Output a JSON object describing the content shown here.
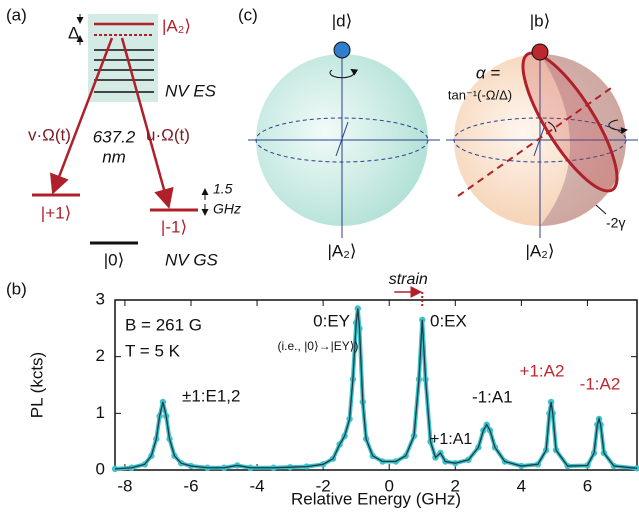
{
  "chart_data": {
    "type": "line",
    "panel_label": "(b)",
    "x_label": "Relative Energy (GHz)",
    "y_label": "PL (kcts)",
    "x": [
      -8.3,
      -7.8,
      -7.4,
      -7.2,
      -7.05,
      -6.95,
      -6.85,
      -6.75,
      -6.65,
      -6.5,
      -6.3,
      -6,
      -5.5,
      -5,
      -4.6,
      -4.2,
      -3.5,
      -3,
      -2.5,
      -2,
      -1.7,
      -1.5,
      -1.35,
      -1.2,
      -1.1,
      -1.0,
      -0.95,
      -0.9,
      -0.8,
      -0.7,
      -0.5,
      -0.2,
      0.2,
      0.5,
      0.75,
      0.9,
      1.0,
      1.1,
      1.25,
      1.4,
      1.55,
      1.7,
      2.0,
      2.4,
      2.7,
      2.85,
      2.95,
      3.05,
      3.2,
      3.5,
      4.0,
      4.5,
      4.75,
      4.85,
      4.9,
      4.95,
      5.05,
      5.4,
      6.0,
      6.2,
      6.3,
      6.35,
      6.4,
      6.5,
      6.8,
      7.5
    ],
    "series": [
      {
        "color": "#3cc3c9",
        "values": [
          0.02,
          0.04,
          0.1,
          0.25,
          0.55,
          0.95,
          1.2,
          0.95,
          0.55,
          0.25,
          0.12,
          0.07,
          0.04,
          0.04,
          0.08,
          0.04,
          0.04,
          0.05,
          0.06,
          0.1,
          0.2,
          0.45,
          0.6,
          0.9,
          1.6,
          2.6,
          2.85,
          2.5,
          1.2,
          0.55,
          0.25,
          0.15,
          0.15,
          0.25,
          0.6,
          1.6,
          2.65,
          1.6,
          0.5,
          0.22,
          0.3,
          0.15,
          0.12,
          0.18,
          0.4,
          0.7,
          0.8,
          0.7,
          0.4,
          0.15,
          0.07,
          0.1,
          0.35,
          1.0,
          1.2,
          1.0,
          0.35,
          0.07,
          0.08,
          0.3,
          0.8,
          0.9,
          0.8,
          0.3,
          0.07,
          0.03
        ]
      }
    ],
    "fit_color": "#1c3a4a",
    "xlim": [
      -8.3,
      7.5
    ],
    "ylim": [
      0,
      3
    ],
    "xticks": [
      -8,
      -6,
      -4,
      -2,
      0,
      2,
      4,
      6
    ],
    "yticks": [
      0,
      1,
      2,
      3
    ],
    "annotations": [
      {
        "text": "B = 261 G",
        "color": "#111111"
      },
      {
        "text": "T = 5 K",
        "color": "#111111"
      },
      {
        "text": "0:EY",
        "color": "#111111"
      },
      {
        "text": "(i.e., |0⟩→|EY⟩)",
        "color": "#111111"
      },
      {
        "text": "0:EX",
        "color": "#111111"
      },
      {
        "text": "±1:E1,2",
        "color": "#111111"
      },
      {
        "text": "+1:A1",
        "color": "#111111"
      },
      {
        "text": "-1:A1",
        "color": "#111111"
      },
      {
        "text": "+1:A2",
        "color": "#c0262d"
      },
      {
        "text": "-1:A2",
        "color": "#c0262d"
      }
    ],
    "strain_marker": {
      "text": "strain",
      "x": 1,
      "color": "#b0202a"
    }
  },
  "energy_level_diagram": {
    "panel_label": "(a)",
    "delta": "Δ",
    "excited_label": "|A₂⟩",
    "es_label": "NV ES",
    "left_drive": "v·Ω(t)",
    "right_drive": "u·Ω(t)",
    "wavelength": [
      "637.2",
      "nm"
    ],
    "plus_label": "|+1⟩",
    "minus_label": "|-1⟩",
    "splitting": [
      "1.5",
      "GHz"
    ],
    "zero_label": "|0⟩",
    "gs_label": "NV GS"
  },
  "bloch_spheres": {
    "panel_label": "(c)",
    "dark_top": "|d⟩",
    "dark_bottom": "|A₂⟩",
    "bright_top": "|b⟩",
    "bright_bottom": "|A₂⟩",
    "alpha_line1": "α =",
    "alpha_line2": "tan⁻¹(-Ω/Δ)",
    "angle": "-2γ"
  }
}
